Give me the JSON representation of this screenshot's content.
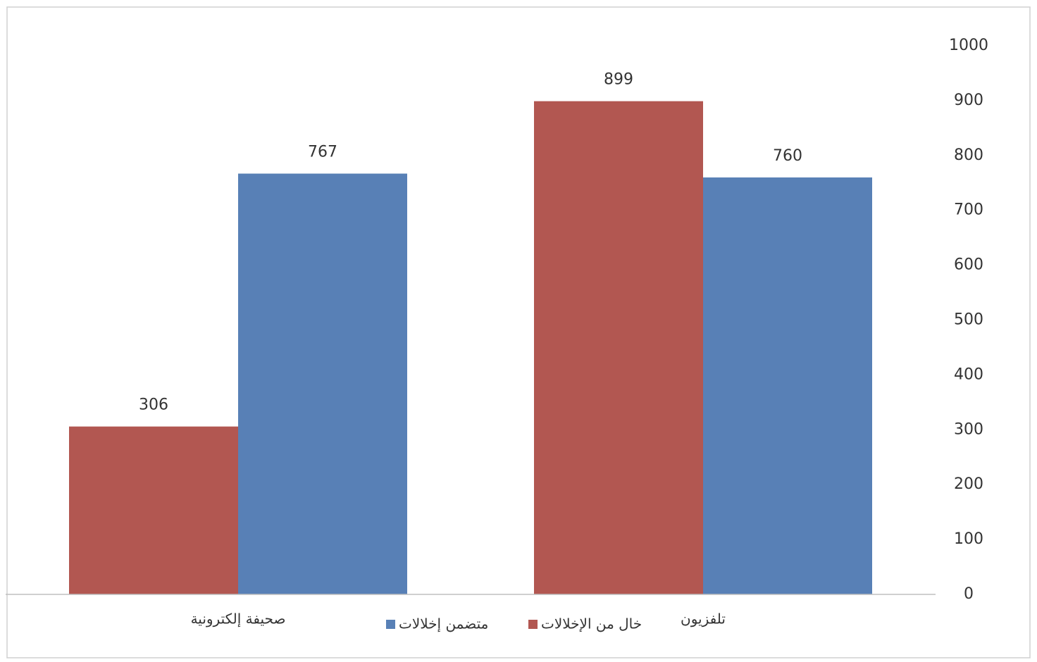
{
  "chart_data": {
    "type": "bar",
    "categories": [
      "تلفزيون",
      "صحيفة إلكترونية"
    ],
    "series": [
      {
        "name": "متضمن إخلالات",
        "color": "#5880b6",
        "values": [
          760,
          767
        ]
      },
      {
        "name": "خال من الإخلالات",
        "color": "#b25751",
        "values": [
          899,
          306
        ]
      }
    ],
    "ylim": [
      0,
      1000
    ],
    "yticks": [
      0,
      100,
      200,
      300,
      400,
      500,
      600,
      700,
      800,
      900,
      1000
    ],
    "grid": false,
    "legend": "bottom",
    "axis_side": "right"
  }
}
